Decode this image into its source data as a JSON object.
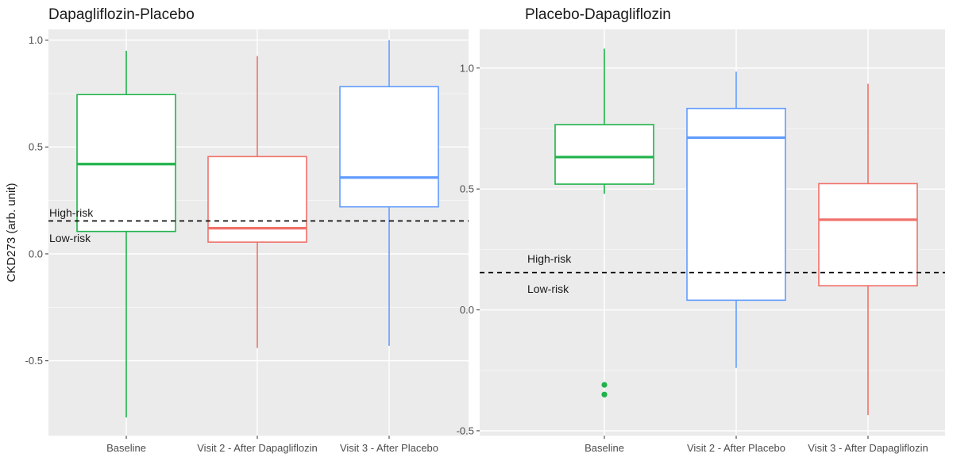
{
  "chart_data": {
    "type": "boxplot",
    "ylabel": "CKD273 (arb. unit)",
    "threshold": {
      "value": 0.154,
      "above_label": "High-risk",
      "below_label": "Low-risk",
      "style": "dashed"
    },
    "grid": true,
    "panels": [
      {
        "title": "Dapagliflozin-Placebo",
        "ylim": [
          -0.85,
          1.05
        ],
        "yticks": [
          -0.5,
          0.0,
          0.5,
          1.0
        ],
        "ytick_labels": [
          "-0.5",
          "0.0",
          "0.5",
          "1.0"
        ],
        "categories": [
          "Baseline",
          "Visit 2 - After Dapagliflozin",
          "Visit 3 - After Placebo"
        ],
        "boxes": [
          {
            "min": -0.765,
            "q1": 0.105,
            "median": 0.42,
            "q3": 0.745,
            "max": 0.95,
            "color": "#1fb34a",
            "outliers": []
          },
          {
            "min": -0.44,
            "q1": 0.055,
            "median": 0.12,
            "q3": 0.455,
            "max": 0.925,
            "color": "#f0716a",
            "outliers": []
          },
          {
            "min": -0.43,
            "q1": 0.22,
            "median": 0.357,
            "q3": 0.782,
            "max": 1.0,
            "color": "#619cff",
            "outliers": []
          }
        ]
      },
      {
        "title": "Placebo-Dapagliflozin",
        "ylim": [
          -0.52,
          1.16
        ],
        "yticks": [
          -0.5,
          0.0,
          0.5,
          1.0
        ],
        "ytick_labels": [
          "-0.5",
          "0.0",
          "0.5",
          "1.0"
        ],
        "categories": [
          "Baseline",
          "Visit 2 - After Placebo",
          "Visit 3 - After Dapagliflozin"
        ],
        "boxes": [
          {
            "min": 0.48,
            "q1": 0.52,
            "median": 0.632,
            "q3": 0.766,
            "max": 1.08,
            "color": "#1fb34a",
            "outliers": [
              -0.31,
              -0.35
            ]
          },
          {
            "min": -0.24,
            "q1": 0.04,
            "median": 0.712,
            "q3": 0.833,
            "max": 0.985,
            "color": "#619cff",
            "outliers": []
          },
          {
            "min": -0.435,
            "q1": 0.1,
            "median": 0.373,
            "q3": 0.522,
            "max": 0.935,
            "color": "#f0716a",
            "outliers": []
          }
        ]
      }
    ]
  }
}
